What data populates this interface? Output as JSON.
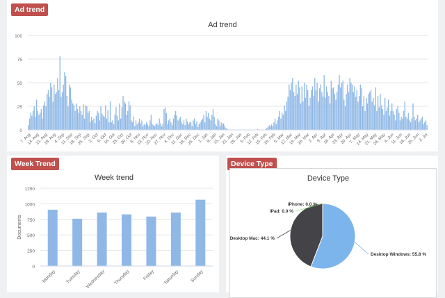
{
  "badges": {
    "ad_trend": "Ad trend",
    "week_trend": "Week Trend",
    "device_type": "Device Type"
  },
  "colors": {
    "bar": "#8fb8e6",
    "pie_windows": "#7cb5ec",
    "pie_mac": "#434348",
    "badge": "#c0504d"
  },
  "chart_data": [
    {
      "type": "bar",
      "title": "Ad trend",
      "xlabel": "",
      "ylabel": "",
      "ylim": [
        0,
        100
      ],
      "yticks": [
        0,
        25,
        50,
        75,
        100
      ],
      "grid": true,
      "xticklabels": [
        "7. Aug",
        "14. Aug",
        "21. Aug",
        "28. Aug",
        "4. Sep",
        "11. Sep",
        "18. Sep",
        "25. Sep",
        "2. Oct",
        "9. Oct",
        "16. Oct",
        "23. Oct",
        "30. Oct",
        "6. Nov",
        "13. Nov",
        "20. Nov",
        "27. Nov",
        "4. Dec",
        "11. Dec",
        "18. Dec",
        "25. Dec",
        "1. Jan",
        "8. Jan",
        "15. Jan",
        "22. Jan",
        "29. Jan",
        "5. Feb",
        "12. Feb",
        "19. Feb",
        "26. Feb",
        "5. Mar",
        "12. Mar",
        "19. Mar",
        "26. Mar",
        "2. Apr",
        "9. Apr",
        "16. Apr",
        "23. Apr",
        "30. Apr",
        "7. May",
        "14. May",
        "21. May",
        "28. May",
        "4. Jun",
        "11. Jun",
        "18. Jun",
        "25. Jun",
        "2. Jul"
      ],
      "values": [
        5,
        12,
        18,
        15,
        20,
        25,
        14,
        32,
        20,
        16,
        18,
        22,
        12,
        26,
        30,
        25,
        38,
        42,
        35,
        50,
        45,
        30,
        48,
        38,
        40,
        55,
        42,
        78,
        35,
        40,
        48,
        61,
        57,
        36,
        25,
        48,
        45,
        32,
        28,
        26,
        20,
        28,
        22,
        18,
        25,
        20,
        16,
        27,
        12,
        26,
        25,
        18,
        20,
        8,
        14,
        10,
        12,
        7,
        15,
        20,
        18,
        10,
        25,
        17,
        15,
        14,
        26,
        12,
        21,
        8,
        30,
        8,
        10,
        6,
        16,
        24,
        15,
        10,
        28,
        12,
        24,
        36,
        30,
        28,
        16,
        20,
        30,
        26,
        10,
        8,
        14,
        4,
        10,
        6,
        8,
        12,
        7,
        10,
        4,
        6,
        5,
        8,
        6,
        4,
        10,
        16,
        6,
        5,
        4,
        6,
        7,
        5,
        12,
        7,
        4,
        6,
        22,
        24,
        18,
        6,
        10,
        12,
        8,
        5,
        12,
        16,
        20,
        15,
        10,
        12,
        14,
        8,
        6,
        10,
        5,
        12,
        9,
        6,
        8,
        8,
        4,
        10,
        12,
        6,
        9,
        3,
        6,
        8,
        10,
        12,
        16,
        8,
        20,
        14,
        18,
        12,
        10,
        16,
        22,
        14,
        6,
        4,
        12,
        10,
        4,
        8,
        6,
        7,
        4,
        2,
        1,
        0,
        0,
        0,
        0,
        0,
        0,
        0,
        0,
        0,
        0,
        0,
        0,
        0,
        0,
        0,
        0,
        0,
        0,
        0,
        0,
        0,
        0,
        0,
        0,
        0,
        1,
        0,
        0,
        0,
        0,
        0,
        0,
        1,
        2,
        3,
        5,
        4,
        6,
        4,
        8,
        12,
        6,
        10,
        14,
        20,
        12,
        18,
        16,
        26,
        20,
        30,
        35,
        48,
        42,
        50,
        55,
        40,
        36,
        48,
        38,
        52,
        45,
        28,
        46,
        30,
        50,
        34,
        48,
        42,
        25,
        34,
        42,
        46,
        36,
        55,
        42,
        50,
        30,
        44,
        48,
        40,
        35,
        58,
        34,
        46,
        40,
        36,
        28,
        52,
        44,
        45,
        38,
        32,
        40,
        48,
        58,
        45,
        50,
        52,
        32,
        25,
        38,
        48,
        40,
        55,
        50,
        48,
        40,
        46,
        35,
        42,
        30,
        36,
        48,
        44,
        25,
        36,
        20,
        34,
        28,
        38,
        40,
        42,
        30,
        34,
        26,
        45,
        20,
        36,
        24,
        38,
        26,
        22,
        16,
        34,
        20,
        24,
        32,
        15,
        20,
        28,
        20,
        16,
        10,
        22,
        25,
        18,
        10,
        14,
        12,
        20,
        30,
        14,
        12,
        18,
        10,
        8,
        12,
        28,
        14,
        10,
        12,
        16,
        8,
        10,
        12,
        14,
        6,
        8,
        10,
        5
      ]
    },
    {
      "type": "bar",
      "title": "Week trend",
      "xlabel": "",
      "ylabel": "Documents",
      "ylim": [
        0,
        1250
      ],
      "yticks": [
        0,
        250,
        500,
        750,
        1000,
        1250
      ],
      "grid": true,
      "categories": [
        "Monday",
        "Tuesday",
        "Wednesday",
        "Thursday",
        "Friday",
        "Saturday",
        "Sunday"
      ],
      "values": [
        905,
        760,
        860,
        830,
        795,
        860,
        1065
      ]
    },
    {
      "type": "pie",
      "title": "Device Type",
      "slices": [
        {
          "name": "Desktop Windows",
          "value": 55.8,
          "label": "Desktop Windows: 55.8 %"
        },
        {
          "name": "Desktop Mac",
          "value": 44.1,
          "label": "Desktop Mac: 44.1 %"
        },
        {
          "name": "iPad",
          "value": 0.0,
          "label": "iPad: 0.0 %"
        },
        {
          "name": "iPhone",
          "value": 0.0,
          "label": "iPhone: 0.0 %"
        }
      ]
    }
  ]
}
